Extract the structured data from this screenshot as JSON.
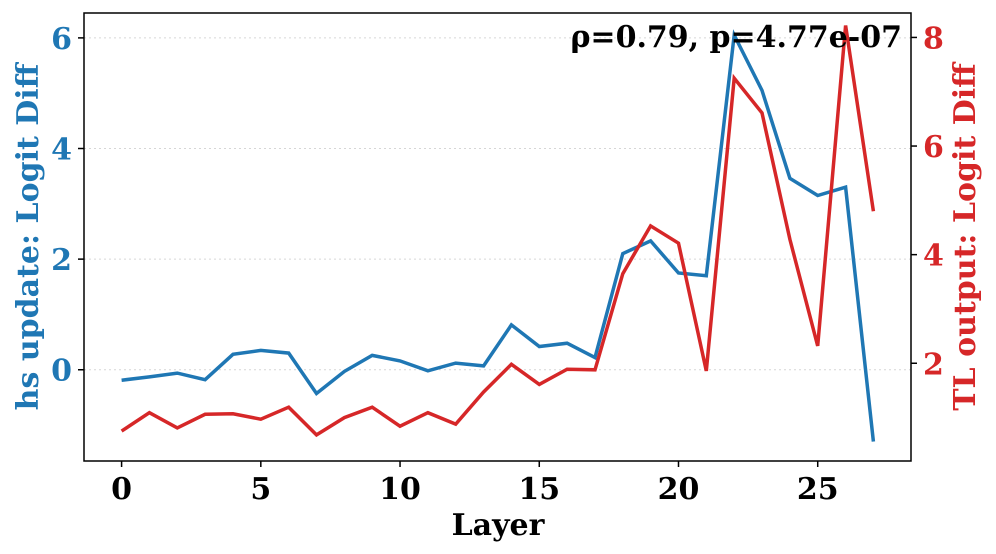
{
  "chart_data": {
    "type": "line",
    "title": "",
    "xlabel": "Layer",
    "ylabel_left": "hs update: Logit Diff",
    "ylabel_right": "TL output: Logit Diff",
    "annotation": "ρ=0.79, p=4.77e-07",
    "x": [
      0,
      1,
      2,
      3,
      4,
      5,
      6,
      7,
      8,
      9,
      10,
      11,
      12,
      13,
      14,
      15,
      16,
      17,
      18,
      19,
      20,
      21,
      22,
      23,
      24,
      25,
      26,
      27
    ],
    "xlim": [
      -1.35,
      28.35
    ],
    "xticks": [
      "0",
      "5",
      "10",
      "15",
      "20",
      "25"
    ],
    "xtick_values": [
      0,
      5,
      10,
      15,
      20,
      25
    ],
    "y_left_lim": [
      -1.65,
      6.45
    ],
    "y_left_ticks": [
      "0",
      "2",
      "4",
      "6"
    ],
    "y_left_tick_values": [
      0,
      2,
      4,
      6
    ],
    "y_right_lim": [
      0.2,
      8.45
    ],
    "y_right_ticks": [
      "2",
      "4",
      "6",
      "8"
    ],
    "y_right_tick_values": [
      2,
      4,
      6,
      8
    ],
    "grid": true,
    "series": [
      {
        "axis": "left",
        "color": "#1f77b4",
        "values": [
          -0.19,
          -0.13,
          -0.06,
          -0.18,
          0.28,
          0.35,
          0.3,
          -0.43,
          -0.03,
          0.26,
          0.16,
          -0.02,
          0.12,
          0.07,
          0.81,
          0.42,
          0.48,
          0.22,
          2.1,
          2.33,
          1.75,
          1.7,
          6.05,
          5.05,
          3.46,
          3.15,
          3.3,
          -1.3
        ]
      },
      {
        "axis": "right",
        "color": "#d62728",
        "values": [
          0.75,
          1.09,
          0.81,
          1.06,
          1.07,
          0.97,
          1.19,
          0.68,
          1.0,
          1.19,
          0.84,
          1.09,
          0.88,
          1.47,
          1.98,
          1.61,
          1.89,
          1.88,
          3.65,
          4.53,
          4.21,
          1.86,
          7.25,
          6.61,
          4.28,
          2.32,
          8.22,
          4.8
        ]
      }
    ]
  }
}
